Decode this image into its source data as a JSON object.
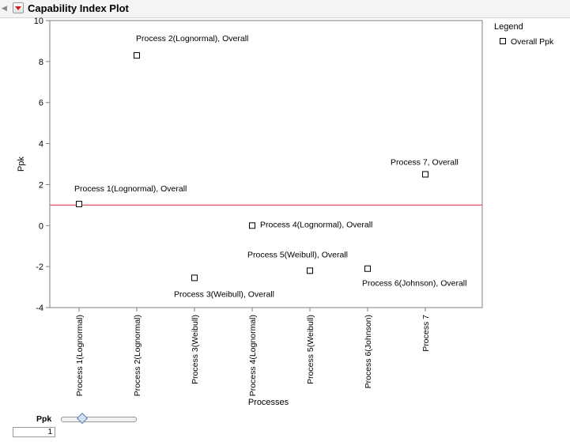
{
  "header": {
    "title": "Capability Index Plot"
  },
  "legend": {
    "title": "Legend",
    "items": [
      {
        "label": "Overall Ppk",
        "marker": "open-square"
      }
    ]
  },
  "slider": {
    "label": "Ppk",
    "value": "1"
  },
  "colors": {
    "reference_line": "#e0595f",
    "axis": "#7f7f7f",
    "marker": "#000000"
  },
  "chart_data": {
    "type": "scatter",
    "xlabel": "Processes",
    "ylabel": "Ppk",
    "ylim": [
      -4,
      10
    ],
    "yticks": [
      -4,
      -2,
      0,
      2,
      4,
      6,
      8,
      10
    ],
    "categories": [
      "Process 1(Lognormal)",
      "Process 2(Lognormal)",
      "Process 3(Weibull)",
      "Process 4(Lognormal)",
      "Process 5(Weibull)",
      "Process 6(Johnson)",
      "Process 7"
    ],
    "reference_line": 1,
    "grid": false,
    "legend_position": "right",
    "series": [
      {
        "name": "Overall Ppk",
        "values": [
          1.05,
          8.3,
          -2.55,
          0.0,
          -2.2,
          -2.1,
          2.5
        ],
        "labels": [
          "Process 1(Lognormal), Overall",
          "Process 2(Lognormal), Overall",
          "Process 3(Weibull), Overall",
          "Process 4(Lognormal), Overall",
          "Process 5(Weibull), Overall",
          "Process 6(Johnson), Overall",
          "Process 7, Overall"
        ]
      }
    ]
  }
}
